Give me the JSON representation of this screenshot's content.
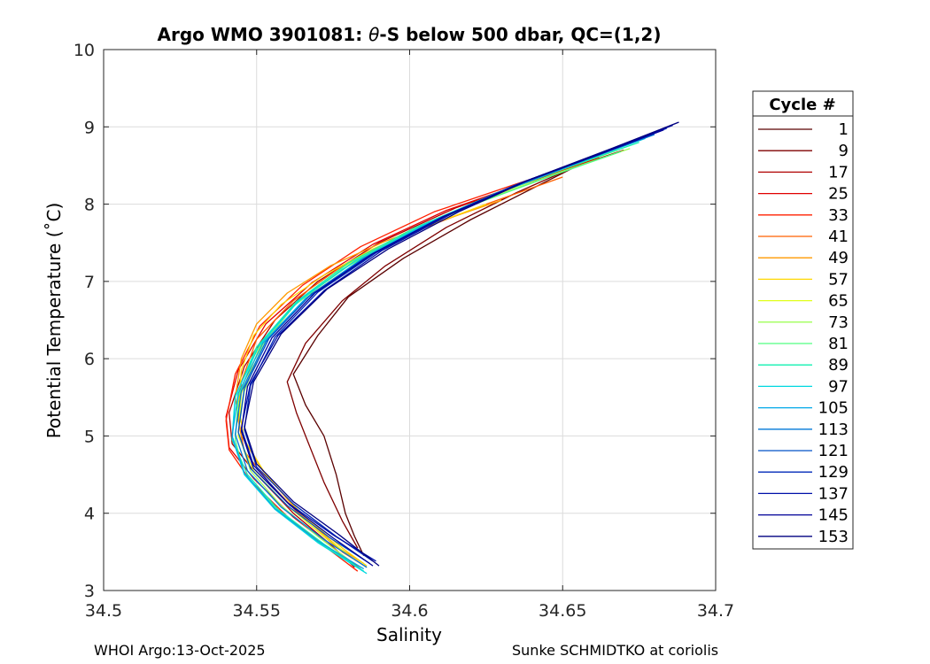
{
  "chart_data": {
    "type": "line",
    "title_prefix": "Argo WMO 3901081: ",
    "title_theta": "θ",
    "title_suffix": "-S below 500 dbar,  QC=(1,2)",
    "xlabel": "Salinity",
    "ylabel": "Potential Temperature (˚C)",
    "xlim": [
      34.5,
      34.7
    ],
    "ylim": [
      3,
      10
    ],
    "xticks": [
      34.5,
      34.55,
      34.6,
      34.65,
      34.7
    ],
    "xtick_labels": [
      "34.5",
      "34.55",
      "34.6",
      "34.65",
      "34.7"
    ],
    "yticks": [
      3,
      4,
      5,
      6,
      7,
      8,
      9,
      10
    ],
    "ytick_labels": [
      "3",
      "4",
      "5",
      "6",
      "7",
      "8",
      "9",
      "10"
    ],
    "grid": true,
    "legend_title": "Cycle #",
    "legend_position": "outside-right",
    "series": [
      {
        "name": "1",
        "color": "#5a0000",
        "points": [
          [
            34.675,
            8.85
          ],
          [
            34.66,
            8.6
          ],
          [
            34.64,
            8.2
          ],
          [
            34.62,
            7.8
          ],
          [
            34.598,
            7.3
          ],
          [
            34.58,
            6.8
          ],
          [
            34.57,
            6.3
          ],
          [
            34.562,
            5.8
          ],
          [
            34.566,
            5.4
          ],
          [
            34.572,
            5.0
          ],
          [
            34.576,
            4.5
          ],
          [
            34.579,
            4.0
          ],
          [
            34.582,
            3.7
          ],
          [
            34.585,
            3.45
          ]
        ]
      },
      {
        "name": "9",
        "color": "#7f0000",
        "points": [
          [
            34.67,
            8.7
          ],
          [
            34.655,
            8.5
          ],
          [
            34.635,
            8.15
          ],
          [
            34.612,
            7.7
          ],
          [
            34.592,
            7.2
          ],
          [
            34.578,
            6.75
          ],
          [
            34.566,
            6.2
          ],
          [
            34.56,
            5.7
          ],
          [
            34.563,
            5.3
          ],
          [
            34.567,
            4.9
          ],
          [
            34.572,
            4.4
          ],
          [
            34.578,
            3.9
          ],
          [
            34.583,
            3.55
          ]
        ]
      },
      {
        "name": "17",
        "color": "#b00000",
        "points": [
          [
            34.662,
            8.6
          ],
          [
            34.64,
            8.3
          ],
          [
            34.615,
            7.95
          ],
          [
            34.59,
            7.5
          ],
          [
            34.57,
            7.0
          ],
          [
            34.556,
            6.5
          ],
          [
            34.546,
            5.9
          ],
          [
            34.541,
            5.3
          ],
          [
            34.542,
            4.9
          ],
          [
            34.55,
            4.5
          ],
          [
            34.562,
            4.0
          ],
          [
            34.574,
            3.6
          ],
          [
            34.582,
            3.3
          ]
        ]
      },
      {
        "name": "25",
        "color": "#e00000",
        "points": [
          [
            34.66,
            8.58
          ],
          [
            34.638,
            8.28
          ],
          [
            34.612,
            7.92
          ],
          [
            34.588,
            7.48
          ],
          [
            34.568,
            6.98
          ],
          [
            34.553,
            6.45
          ],
          [
            34.544,
            5.85
          ],
          [
            34.54,
            5.25
          ],
          [
            34.541,
            4.85
          ],
          [
            34.549,
            4.45
          ],
          [
            34.562,
            3.95
          ],
          [
            34.575,
            3.55
          ],
          [
            34.584,
            3.28
          ]
        ]
      },
      {
        "name": "33",
        "color": "#ff2000",
        "points": [
          [
            34.657,
            8.55
          ],
          [
            34.634,
            8.25
          ],
          [
            34.608,
            7.9
          ],
          [
            34.584,
            7.45
          ],
          [
            34.565,
            6.95
          ],
          [
            34.551,
            6.42
          ],
          [
            34.543,
            5.8
          ],
          [
            34.54,
            5.2
          ],
          [
            34.541,
            4.82
          ],
          [
            34.548,
            4.42
          ],
          [
            34.561,
            3.92
          ],
          [
            34.574,
            3.52
          ],
          [
            34.583,
            3.25
          ]
        ]
      },
      {
        "name": "41",
        "color": "#ff6000",
        "points": [
          [
            34.65,
            8.35
          ],
          [
            34.625,
            8.0
          ],
          [
            34.6,
            7.62
          ],
          [
            34.578,
            7.2
          ],
          [
            34.562,
            6.75
          ],
          [
            34.55,
            6.25
          ],
          [
            34.545,
            5.7
          ],
          [
            34.544,
            5.2
          ],
          [
            34.546,
            4.8
          ],
          [
            34.554,
            4.4
          ],
          [
            34.566,
            3.9
          ],
          [
            34.578,
            3.5
          ],
          [
            34.586,
            3.3
          ]
        ]
      },
      {
        "name": "49",
        "color": "#ff9a00",
        "points": [
          [
            34.63,
            8.05
          ],
          [
            34.61,
            7.78
          ],
          [
            34.592,
            7.52
          ],
          [
            34.574,
            7.2
          ],
          [
            34.56,
            6.85
          ],
          [
            34.55,
            6.45
          ],
          [
            34.545,
            6.0
          ],
          [
            34.543,
            5.5
          ],
          [
            34.545,
            5.0
          ],
          [
            34.552,
            4.55
          ],
          [
            34.564,
            4.0
          ],
          [
            34.577,
            3.55
          ],
          [
            34.585,
            3.35
          ]
        ]
      },
      {
        "name": "57",
        "color": "#ffd800",
        "points": [
          [
            34.625,
            8.0
          ],
          [
            34.606,
            7.72
          ],
          [
            34.588,
            7.42
          ],
          [
            34.572,
            7.08
          ],
          [
            34.558,
            6.7
          ],
          [
            34.549,
            6.3
          ],
          [
            34.545,
            5.85
          ],
          [
            34.544,
            5.4
          ],
          [
            34.546,
            4.95
          ],
          [
            34.553,
            4.5
          ],
          [
            34.565,
            3.98
          ],
          [
            34.578,
            3.55
          ],
          [
            34.586,
            3.32
          ]
        ]
      },
      {
        "name": "65",
        "color": "#e0ff1a",
        "points": [
          [
            34.668,
            8.7
          ],
          [
            34.645,
            8.38
          ],
          [
            34.62,
            8.0
          ],
          [
            34.598,
            7.62
          ],
          [
            34.578,
            7.18
          ],
          [
            34.562,
            6.7
          ],
          [
            34.551,
            6.15
          ],
          [
            34.545,
            5.55
          ],
          [
            34.544,
            5.0
          ],
          [
            34.549,
            4.55
          ],
          [
            34.56,
            4.1
          ],
          [
            34.572,
            3.7
          ],
          [
            34.582,
            3.4
          ]
        ]
      },
      {
        "name": "73",
        "color": "#a0ff5a",
        "points": [
          [
            34.672,
            8.72
          ],
          [
            34.648,
            8.4
          ],
          [
            34.622,
            8.02
          ],
          [
            34.6,
            7.64
          ],
          [
            34.58,
            7.2
          ],
          [
            34.563,
            6.72
          ],
          [
            34.552,
            6.18
          ],
          [
            34.546,
            5.58
          ],
          [
            34.544,
            5.05
          ],
          [
            34.548,
            4.55
          ],
          [
            34.558,
            4.1
          ],
          [
            34.57,
            3.7
          ],
          [
            34.58,
            3.4
          ]
        ]
      },
      {
        "name": "81",
        "color": "#50ff80",
        "points": [
          [
            34.669,
            8.68
          ],
          [
            34.646,
            8.36
          ],
          [
            34.62,
            7.98
          ],
          [
            34.598,
            7.6
          ],
          [
            34.578,
            7.16
          ],
          [
            34.562,
            6.68
          ],
          [
            34.55,
            6.12
          ],
          [
            34.544,
            5.5
          ],
          [
            34.543,
            4.95
          ],
          [
            34.546,
            4.5
          ],
          [
            34.556,
            4.08
          ],
          [
            34.568,
            3.68
          ],
          [
            34.58,
            3.38
          ]
        ]
      },
      {
        "name": "89",
        "color": "#10f0b0",
        "points": [
          [
            34.675,
            8.8
          ],
          [
            34.652,
            8.48
          ],
          [
            34.626,
            8.1
          ],
          [
            34.602,
            7.7
          ],
          [
            34.58,
            7.24
          ],
          [
            34.563,
            6.74
          ],
          [
            34.55,
            6.15
          ],
          [
            34.543,
            5.5
          ],
          [
            34.542,
            4.95
          ],
          [
            34.547,
            4.5
          ],
          [
            34.557,
            4.05
          ],
          [
            34.572,
            3.6
          ],
          [
            34.585,
            3.25
          ]
        ]
      },
      {
        "name": "97",
        "color": "#00d8e0",
        "points": [
          [
            34.677,
            8.85
          ],
          [
            34.654,
            8.52
          ],
          [
            34.628,
            8.14
          ],
          [
            34.604,
            7.72
          ],
          [
            34.582,
            7.26
          ],
          [
            34.564,
            6.76
          ],
          [
            34.551,
            6.18
          ],
          [
            34.543,
            5.52
          ],
          [
            34.542,
            4.98
          ],
          [
            34.546,
            4.5
          ],
          [
            34.556,
            4.05
          ],
          [
            34.57,
            3.62
          ],
          [
            34.586,
            3.22
          ]
        ]
      },
      {
        "name": "105",
        "color": "#00a8e8",
        "points": [
          [
            34.678,
            8.88
          ],
          [
            34.656,
            8.55
          ],
          [
            34.63,
            8.16
          ],
          [
            34.606,
            7.75
          ],
          [
            34.584,
            7.28
          ],
          [
            34.566,
            6.78
          ],
          [
            34.552,
            6.2
          ],
          [
            34.544,
            5.55
          ],
          [
            34.542,
            5.0
          ],
          [
            34.546,
            4.52
          ],
          [
            34.556,
            4.06
          ],
          [
            34.57,
            3.64
          ],
          [
            34.585,
            3.28
          ]
        ]
      },
      {
        "name": "113",
        "color": "#0078d8",
        "points": [
          [
            34.68,
            8.9
          ],
          [
            34.658,
            8.58
          ],
          [
            34.632,
            8.2
          ],
          [
            34.608,
            7.78
          ],
          [
            34.585,
            7.3
          ],
          [
            34.567,
            6.8
          ],
          [
            34.553,
            6.22
          ],
          [
            34.545,
            5.58
          ],
          [
            34.543,
            5.02
          ],
          [
            34.547,
            4.55
          ],
          [
            34.558,
            4.08
          ],
          [
            34.572,
            3.66
          ],
          [
            34.586,
            3.3
          ]
        ]
      },
      {
        "name": "121",
        "color": "#0050c8",
        "points": [
          [
            34.682,
            8.95
          ],
          [
            34.66,
            8.62
          ],
          [
            34.634,
            8.24
          ],
          [
            34.61,
            7.82
          ],
          [
            34.587,
            7.34
          ],
          [
            34.568,
            6.84
          ],
          [
            34.554,
            6.26
          ],
          [
            34.546,
            5.62
          ],
          [
            34.544,
            5.05
          ],
          [
            34.548,
            4.58
          ],
          [
            34.56,
            4.1
          ],
          [
            34.574,
            3.68
          ],
          [
            34.587,
            3.35
          ]
        ]
      },
      {
        "name": "129",
        "color": "#0028b8",
        "points": [
          [
            34.684,
            8.98
          ],
          [
            34.662,
            8.65
          ],
          [
            34.636,
            8.27
          ],
          [
            34.612,
            7.85
          ],
          [
            34.589,
            7.37
          ],
          [
            34.57,
            6.86
          ],
          [
            34.556,
            6.28
          ],
          [
            34.548,
            5.65
          ],
          [
            34.546,
            5.08
          ],
          [
            34.55,
            4.6
          ],
          [
            34.562,
            4.12
          ],
          [
            34.576,
            3.7
          ],
          [
            34.588,
            3.38
          ]
        ]
      },
      {
        "name": "137",
        "color": "#0010a8",
        "points": [
          [
            34.686,
            9.02
          ],
          [
            34.664,
            8.68
          ],
          [
            34.638,
            8.3
          ],
          [
            34.614,
            7.88
          ],
          [
            34.591,
            7.4
          ],
          [
            34.572,
            6.88
          ],
          [
            34.557,
            6.3
          ],
          [
            34.548,
            5.68
          ],
          [
            34.545,
            5.1
          ],
          [
            34.549,
            4.62
          ],
          [
            34.56,
            4.14
          ],
          [
            34.575,
            3.72
          ],
          [
            34.589,
            3.38
          ]
        ]
      },
      {
        "name": "145",
        "color": "#000098",
        "points": [
          [
            34.683,
            8.96
          ],
          [
            34.661,
            8.63
          ],
          [
            34.635,
            8.25
          ],
          [
            34.611,
            7.84
          ],
          [
            34.588,
            7.36
          ],
          [
            34.569,
            6.85
          ],
          [
            34.555,
            6.27
          ],
          [
            34.547,
            5.64
          ],
          [
            34.545,
            5.06
          ],
          [
            34.549,
            4.58
          ],
          [
            34.561,
            4.1
          ],
          [
            34.575,
            3.68
          ],
          [
            34.588,
            3.32
          ]
        ]
      },
      {
        "name": "153",
        "color": "#000080",
        "points": [
          [
            34.688,
            9.06
          ],
          [
            34.666,
            8.72
          ],
          [
            34.64,
            8.33
          ],
          [
            34.616,
            7.9
          ],
          [
            34.593,
            7.42
          ],
          [
            34.573,
            6.9
          ],
          [
            34.558,
            6.32
          ],
          [
            34.549,
            5.7
          ],
          [
            34.546,
            5.12
          ],
          [
            34.55,
            4.64
          ],
          [
            34.562,
            4.15
          ],
          [
            34.577,
            3.72
          ],
          [
            34.59,
            3.32
          ]
        ]
      }
    ]
  },
  "footer": {
    "left": "WHOI Argo:13-Oct-2025",
    "right": "Sunke SCHMIDTKO at coriolis"
  }
}
